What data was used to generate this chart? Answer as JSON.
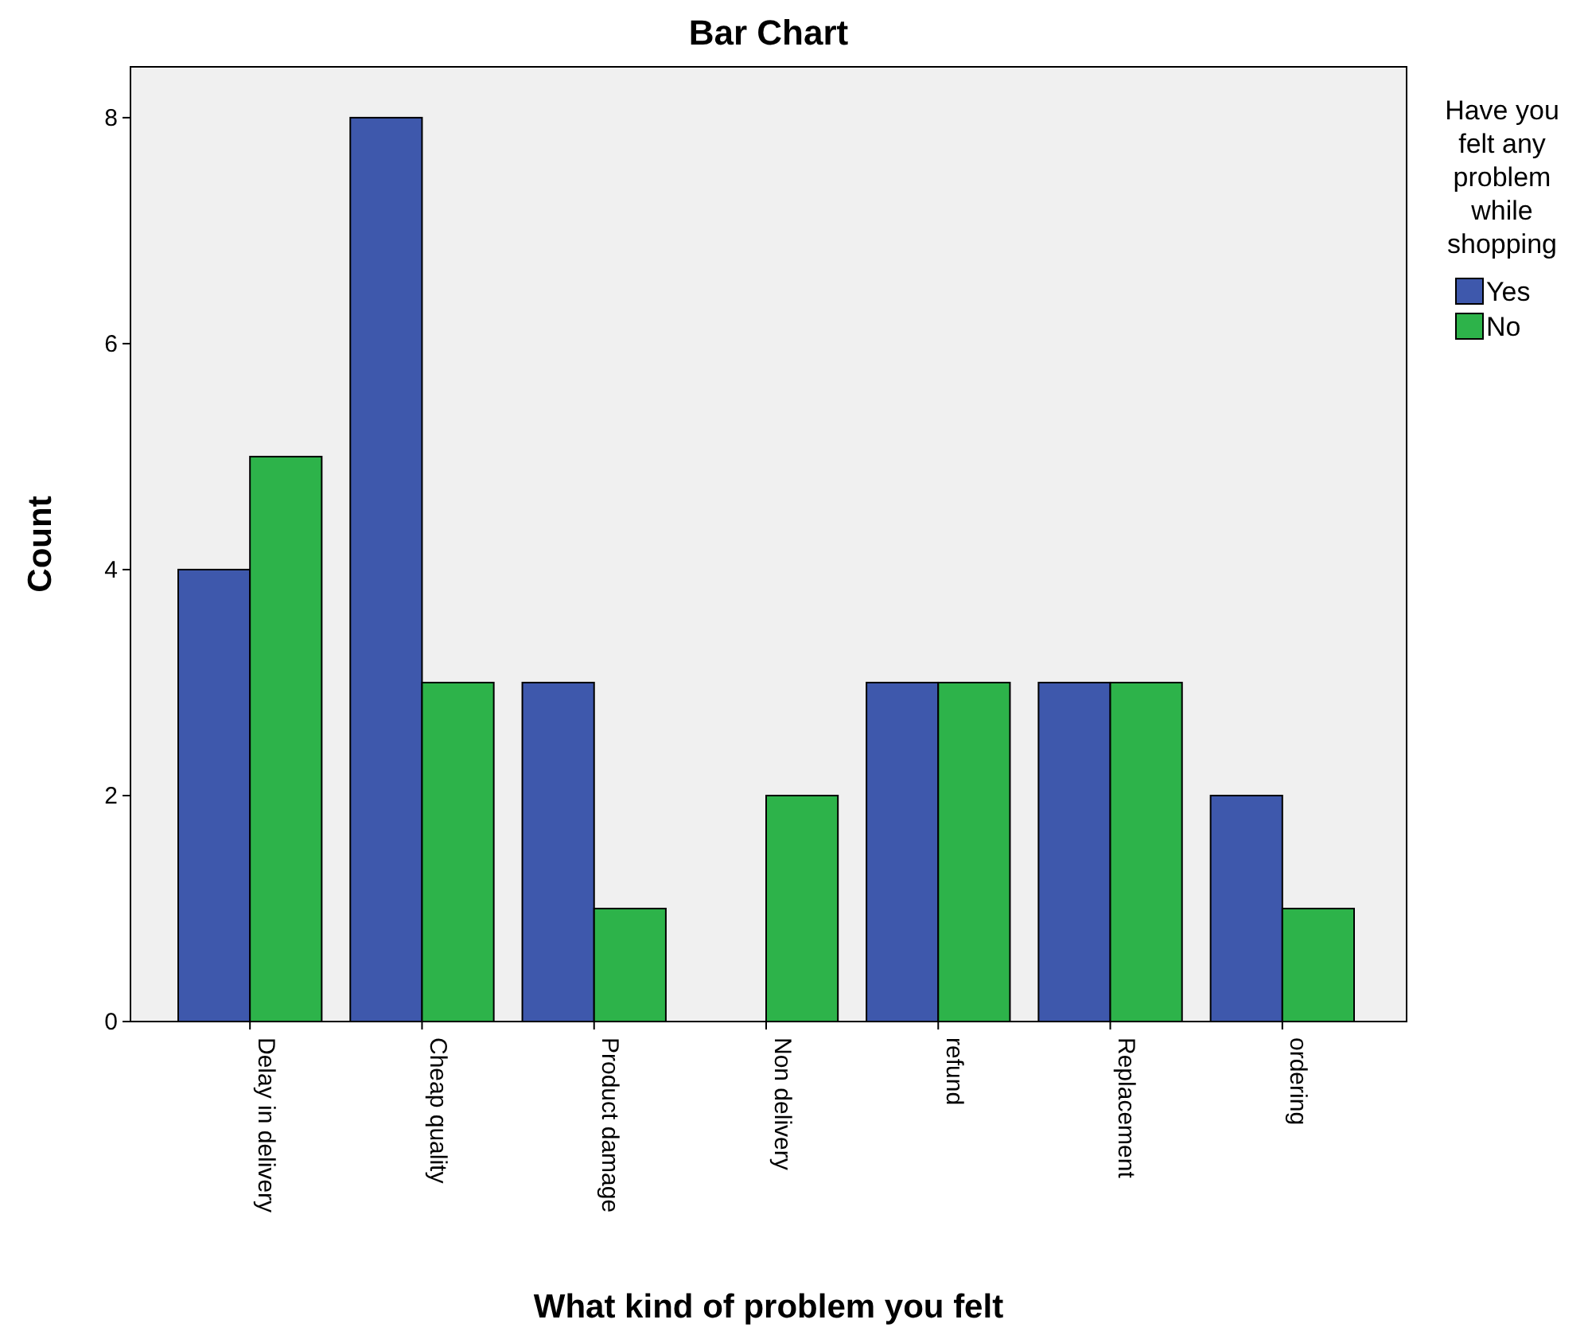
{
  "chart_data": {
    "type": "bar",
    "title": "Bar Chart",
    "xlabel": "What kind of problem you felt",
    "ylabel": "Count",
    "legend_title": "Have you felt any problem while shopping",
    "categories": [
      "Delay in delivery",
      "Cheap quality",
      "Product damage",
      "Non delivery",
      "refund",
      "Replacement",
      "ordering"
    ],
    "series": [
      {
        "name": "Yes",
        "color": "#3e58ac",
        "values": [
          4,
          8,
          3,
          0,
          3,
          3,
          2
        ]
      },
      {
        "name": "No",
        "color": "#2db34a",
        "values": [
          5,
          3,
          1,
          2,
          3,
          3,
          1
        ]
      }
    ],
    "ylim": [
      0,
      8.45
    ],
    "yticks": [
      0,
      2,
      4,
      6,
      8
    ],
    "grid": false,
    "legend": "top right"
  }
}
